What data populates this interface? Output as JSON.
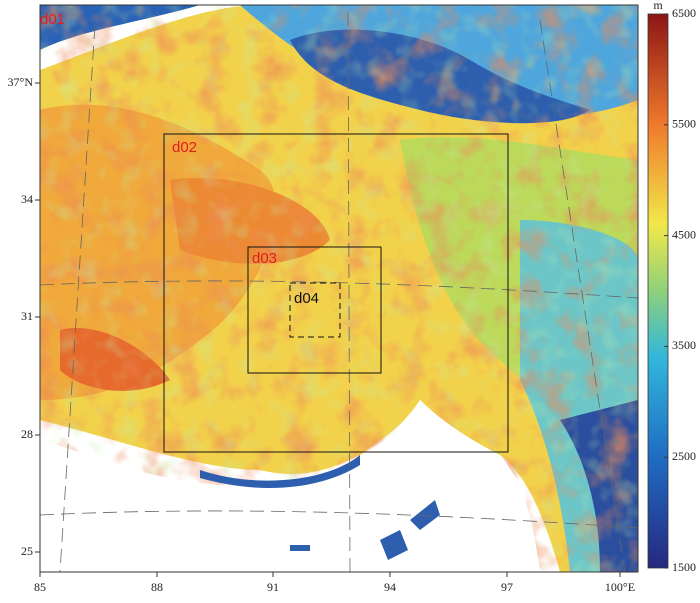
{
  "map": {
    "domains": [
      "d01",
      "d02",
      "d03",
      "d04"
    ],
    "x_ticks": [
      "85",
      "88",
      "91",
      "94",
      "97",
      "100°E"
    ],
    "y_ticks": [
      "37°N",
      "34",
      "31",
      "28",
      "25"
    ],
    "colorbar": {
      "unit": "m",
      "range": [
        1500,
        6500
      ],
      "ticks": [
        1500,
        2500,
        3500,
        4500,
        5500,
        6500
      ]
    }
  }
}
